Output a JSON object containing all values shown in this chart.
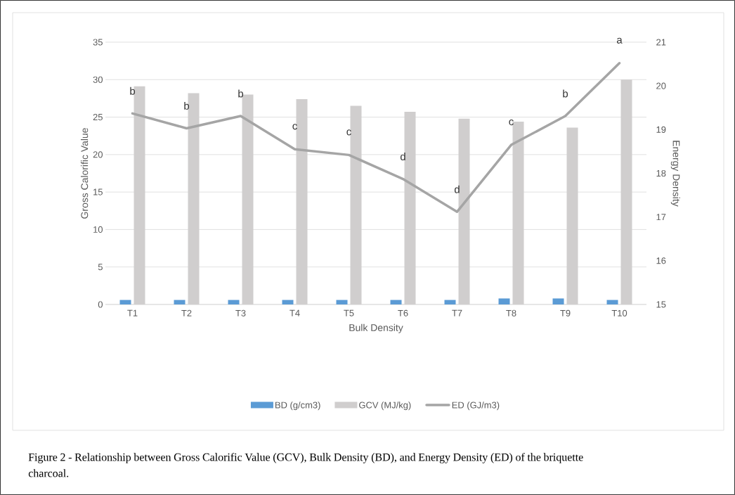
{
  "chart_data": {
    "type": "bar",
    "xlabel": "Bulk Density",
    "ylabel": "Gross Calorific Value",
    "y2label": "Energy Density",
    "categories": [
      "T1",
      "T2",
      "T3",
      "T4",
      "T5",
      "T6",
      "T7",
      "T8",
      "T9",
      "T10"
    ],
    "series": [
      {
        "name": "BD (g/cm3)",
        "color": "#5b9bd5",
        "values": [
          0.6,
          0.6,
          0.6,
          0.6,
          0.6,
          0.6,
          0.6,
          0.8,
          0.8,
          0.6
        ]
      },
      {
        "name": "GCV (MJ/kg)",
        "color": "#d0cece",
        "values": [
          29.1,
          28.2,
          28.0,
          27.4,
          26.5,
          25.7,
          24.8,
          24.4,
          23.6,
          30.0
        ]
      },
      {
        "name": "ED (GJ/m3)",
        "type": "line",
        "axis": "y2",
        "color": "#a5a5a5",
        "values": [
          19.37,
          19.03,
          19.31,
          18.55,
          18.42,
          17.87,
          17.12,
          18.65,
          19.31,
          20.52
        ]
      }
    ],
    "ylim": [
      0,
      35
    ],
    "yticks": [
      0,
      5,
      10,
      15,
      20,
      25,
      30,
      35
    ],
    "y2lim": [
      15,
      21
    ],
    "y2ticks": [
      15,
      16,
      17,
      18,
      19,
      20,
      21
    ],
    "grid": "y",
    "legend": "bottom",
    "annotations": [
      "b",
      "b",
      "b",
      "c",
      "c",
      "d",
      "d",
      "c",
      "b",
      "a",
      "Figure 2 - Relationship between Gross Calorific Value (GCV), Bulk Density (BD), and Energy Density (ED) of the briquette charcoal."
    ]
  }
}
